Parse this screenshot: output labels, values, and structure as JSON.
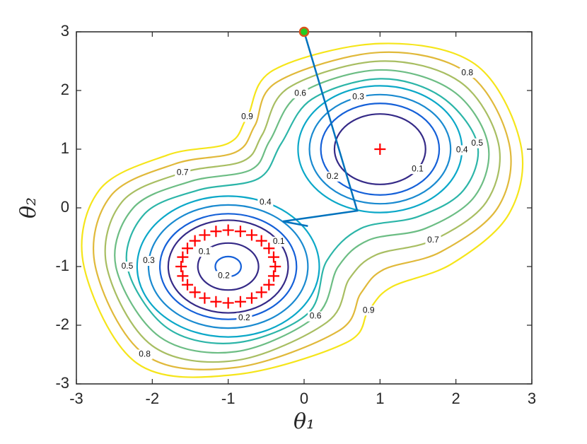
{
  "chart_data": {
    "type": "contour",
    "xlabel": "θ₁",
    "ylabel": "θ₂",
    "xlim": [
      -3,
      3
    ],
    "ylim": [
      -3,
      3
    ],
    "xticks": [
      -3,
      -2,
      -1,
      0,
      1,
      2,
      3
    ],
    "yticks": [
      -3,
      -2,
      -1,
      0,
      1,
      2,
      3
    ],
    "contours": [
      {
        "level": 0.1,
        "color": "#352a87",
        "cx": 1,
        "cy": 1,
        "r": 0.6
      },
      {
        "level": 0.2,
        "color": "#1560d8",
        "cx": 1,
        "cy": 1,
        "r": 0.78
      },
      {
        "level": 0.3,
        "color": "#1a8ad0",
        "cx": 1,
        "cy": 1,
        "r": 0.93
      },
      {
        "level": 0.4,
        "color": "#0ca8c8",
        "cx": 1,
        "cy": 1,
        "r": 1.08
      },
      {
        "level": 0.2,
        "color": "#1560d8",
        "cx": -1,
        "cy": -1,
        "r": 0.17
      },
      {
        "level": 0.1,
        "color": "#352a87",
        "cx": -1,
        "cy": -1,
        "r": 0.4
      },
      {
        "level": 0.1,
        "color": "#352a87",
        "cx": -1,
        "cy": -1,
        "r": 0.79
      },
      {
        "level": 0.2,
        "color": "#1560d8",
        "cx": -1,
        "cy": -1,
        "r": 0.9
      },
      {
        "level": 0.3,
        "color": "#1a8ad0",
        "cx": -1,
        "cy": -1,
        "r": 1.05
      },
      {
        "level": 0.4,
        "color": "#0ca8c8",
        "cx": -1,
        "cy": -1,
        "r": 1.2
      },
      {
        "level": 0.5,
        "color": "#2cb5a8",
        "x": [
          1.0,
          1.8,
          2.28,
          2.1,
          1.5,
          0.75,
          0.3,
          0.05,
          -0.9,
          -1.8,
          -2.33,
          -2.1,
          -1.4,
          -0.6,
          -0.3,
          0.1
        ],
        "y": [
          2.2,
          1.9,
          1.1,
          0.3,
          -0.15,
          -0.35,
          -0.9,
          -1.8,
          -2.3,
          -2.05,
          -1.0,
          -0.1,
          0.3,
          0.5,
          1.1,
          1.85
        ]
      },
      {
        "level": 0.6,
        "color": "#6cbd84",
        "x": [
          1.0,
          1.95,
          2.42,
          2.25,
          1.6,
          0.85,
          0.45,
          0.15,
          -0.9,
          -1.9,
          -2.48,
          -2.25,
          -1.5,
          -0.7,
          -0.45,
          -0.05
        ],
        "y": [
          2.35,
          2.0,
          1.1,
          0.2,
          -0.35,
          -0.55,
          -1.0,
          -1.85,
          -2.45,
          -2.2,
          -1.0,
          0.0,
          0.45,
          0.65,
          1.15,
          1.95
        ]
      },
      {
        "level": 0.7,
        "color": "#a8be62",
        "x": [
          1.0,
          2.05,
          2.56,
          2.4,
          1.7,
          0.95,
          0.6,
          0.3,
          -0.9,
          -2.0,
          -2.6,
          -2.4,
          -1.6,
          -0.8,
          -0.55,
          -0.2
        ],
        "y": [
          2.5,
          2.15,
          1.1,
          0.1,
          -0.55,
          -0.8,
          -1.2,
          -1.95,
          -2.6,
          -2.35,
          -1.0,
          0.1,
          0.6,
          0.8,
          1.25,
          2.05
        ]
      },
      {
        "level": 0.8,
        "color": "#e0b93a",
        "x": [
          1.0,
          2.15,
          2.7,
          2.55,
          1.8,
          1.05,
          0.75,
          0.45,
          -0.9,
          -2.1,
          -2.75,
          -2.55,
          -1.7,
          -0.9,
          -0.65,
          -0.35
        ],
        "y": [
          2.65,
          2.3,
          1.1,
          0.0,
          -0.75,
          -1.05,
          -1.45,
          -2.1,
          -2.72,
          -2.5,
          -1.0,
          0.2,
          0.75,
          0.95,
          1.4,
          2.15
        ]
      },
      {
        "level": 0.9,
        "color": "#f5e51a",
        "x": [
          1.0,
          2.25,
          2.85,
          2.7,
          1.95,
          1.15,
          0.85,
          0.55,
          -0.9,
          -2.2,
          -2.9,
          -2.7,
          -1.8,
          -1.0,
          -0.75,
          -0.4
        ],
        "y": [
          2.8,
          2.45,
          1.1,
          -0.1,
          -0.95,
          -1.35,
          -1.75,
          -2.3,
          -2.84,
          -2.65,
          -1.0,
          0.3,
          0.9,
          1.1,
          1.55,
          2.35
        ]
      }
    ],
    "path": {
      "color": "#0072bd",
      "x": [
        0,
        0.7,
        -0.28,
        0.05
      ],
      "y": [
        3,
        -0.05,
        -0.23,
        -0.31
      ],
      "start_fill": "#22cc22",
      "start_edge": "#d95319"
    },
    "points": {
      "color": "#ff0000",
      "x": [
        1,
        -0.38,
        -0.401,
        -0.463,
        -0.562,
        -0.69,
        -0.839,
        -1,
        -1.161,
        -1.31,
        -1.438,
        -1.537,
        -1.599,
        -1.62,
        -1.599,
        -1.537,
        -1.438,
        -1.31,
        -1.161,
        -1,
        -0.839,
        -0.69,
        -0.562,
        -0.463,
        -0.401
      ],
      "y": [
        1,
        -1,
        -0.839,
        -0.69,
        -0.562,
        -0.463,
        -0.401,
        -0.38,
        -0.401,
        -0.463,
        -0.562,
        -0.69,
        -0.839,
        -1,
        -1.161,
        -1.31,
        -1.438,
        -1.537,
        -1.599,
        -1.62,
        -1.599,
        -1.537,
        -1.438,
        -1.31,
        -1.161
      ]
    }
  }
}
